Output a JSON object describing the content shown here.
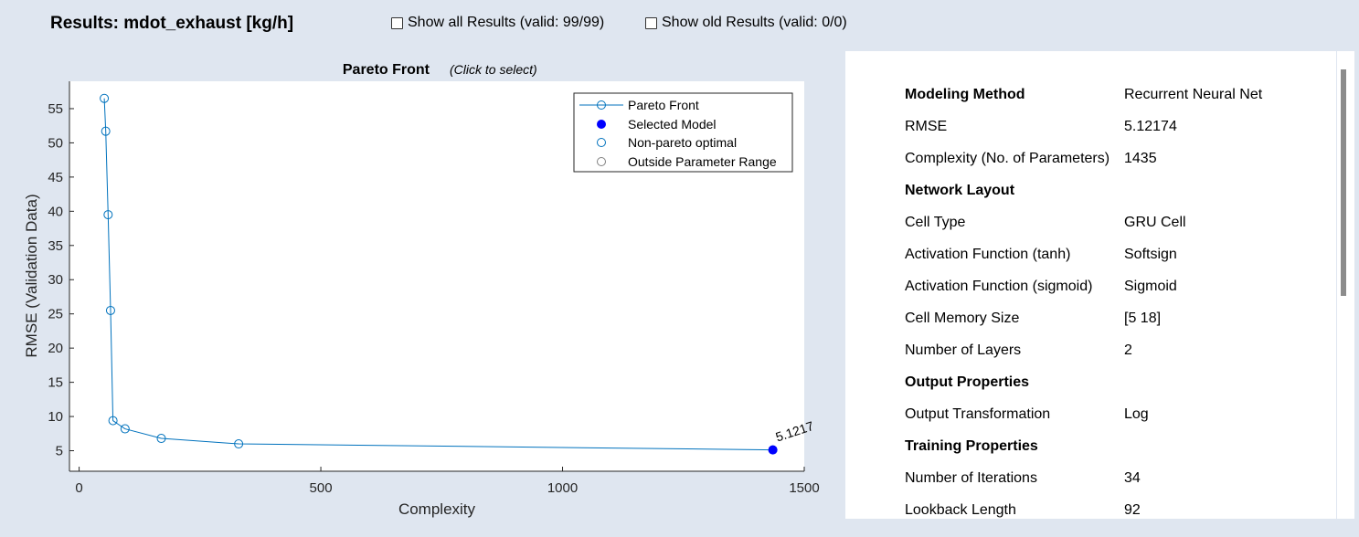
{
  "header": {
    "title": "Results: mdot_exhaust [kg/h]",
    "show_all": {
      "label": "Show all Results (valid: 99/99)",
      "checked": false
    },
    "show_old": {
      "label": "Show old Results (valid: 0/0)",
      "checked": false
    }
  },
  "chart": {
    "title": "Pareto Front",
    "subtitle": "(Click to select)",
    "selected_label": "5.1217"
  },
  "chart_data": {
    "type": "line",
    "xlabel": "Complexity",
    "ylabel": "RMSE (Validation Data)",
    "xlim": [
      -20,
      1500
    ],
    "ylim": [
      2,
      59
    ],
    "xticks": [
      0,
      500,
      1000,
      1500
    ],
    "yticks": [
      5,
      10,
      15,
      20,
      25,
      30,
      35,
      40,
      45,
      50,
      55
    ],
    "grid": false,
    "legend_position": "top-right",
    "legend": [
      {
        "label": "Pareto Front",
        "marker": "line-open-circle",
        "color": "#0072bd"
      },
      {
        "label": "Selected Model",
        "marker": "filled-circle",
        "color": "#0000ff"
      },
      {
        "label": "Non-pareto optimal",
        "marker": "open-circle",
        "color": "#0072bd"
      },
      {
        "label": "Outside Parameter Range",
        "marker": "open-circle",
        "color": "#808080"
      }
    ],
    "series": [
      {
        "name": "Pareto Front",
        "color": "#0072bd",
        "x": [
          52,
          55,
          60,
          65,
          70,
          95,
          170,
          330,
          1435
        ],
        "y": [
          56.5,
          51.7,
          39.5,
          25.5,
          9.4,
          8.2,
          6.8,
          6.0,
          5.12
        ]
      }
    ],
    "selected_point": {
      "x": 1435,
      "y": 5.12174,
      "color": "#0000ff"
    }
  },
  "properties": [
    {
      "key": "Modeling Method",
      "value": "Recurrent Neural Net",
      "header": true
    },
    {
      "key": "RMSE",
      "value": "5.12174"
    },
    {
      "key": "Complexity (No. of Parameters)",
      "value": "1435"
    },
    {
      "key": "Network Layout",
      "value": "",
      "header": true
    },
    {
      "key": "Cell Type",
      "value": "GRU Cell"
    },
    {
      "key": "Activation Function (tanh)",
      "value": "Softsign"
    },
    {
      "key": "Activation Function (sigmoid)",
      "value": "Sigmoid"
    },
    {
      "key": "Cell Memory Size",
      "value": "[5 18]"
    },
    {
      "key": "Number of Layers",
      "value": "2"
    },
    {
      "key": "Output Properties",
      "value": "",
      "header": true
    },
    {
      "key": "Output Transformation",
      "value": "Log"
    },
    {
      "key": "Training Properties",
      "value": "",
      "header": true
    },
    {
      "key": "Number of Iterations",
      "value": "34"
    },
    {
      "key": "Lookback Length",
      "value": "92"
    }
  ]
}
